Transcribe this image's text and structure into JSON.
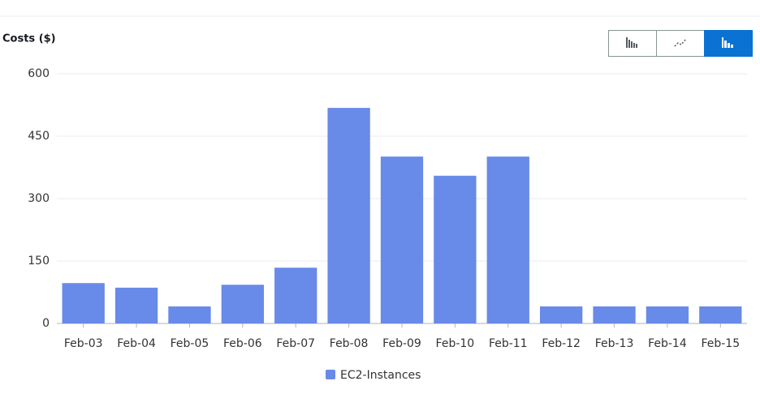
{
  "chart_data": {
    "type": "bar",
    "y_label": "Costs ($)",
    "categories": [
      "Feb-03",
      "Feb-04",
      "Feb-05",
      "Feb-06",
      "Feb-07",
      "Feb-08",
      "Feb-09",
      "Feb-10",
      "Feb-11",
      "Feb-12",
      "Feb-13",
      "Feb-14",
      "Feb-15"
    ],
    "series": [
      {
        "name": "EC2-Instances",
        "color": "#688ae8",
        "values": [
          97,
          86,
          41,
          93,
          134,
          518,
          401,
          355,
          401,
          41,
          41,
          41,
          41
        ]
      }
    ],
    "ylim": [
      0,
      600
    ],
    "yticks": [
      0,
      150,
      300,
      450,
      600
    ],
    "grid": true,
    "legend": "bottom"
  }
}
